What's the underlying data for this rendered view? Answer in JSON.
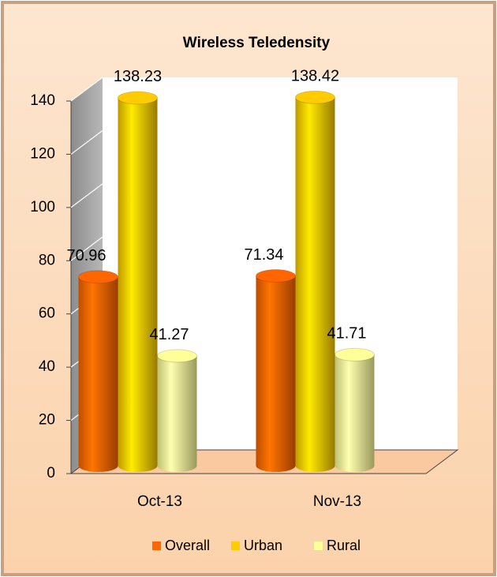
{
  "chart_data": {
    "type": "bar3d",
    "title": "Wireless Teledensity",
    "categories": [
      "Oct-13",
      "Nov-13"
    ],
    "series": [
      {
        "name": "Overall",
        "color": "#ff6600",
        "values": [
          70.96,
          71.34
        ]
      },
      {
        "name": "Urban",
        "color": "#ffcc00",
        "values": [
          138.23,
          138.42
        ]
      },
      {
        "name": "Rural",
        "color": "#ffff99",
        "values": [
          41.27,
          41.71
        ]
      }
    ],
    "ylim": [
      0,
      140
    ],
    "yticks": [
      0,
      20,
      40,
      60,
      80,
      100,
      120,
      140
    ],
    "grid": true,
    "legend": "bottom"
  }
}
